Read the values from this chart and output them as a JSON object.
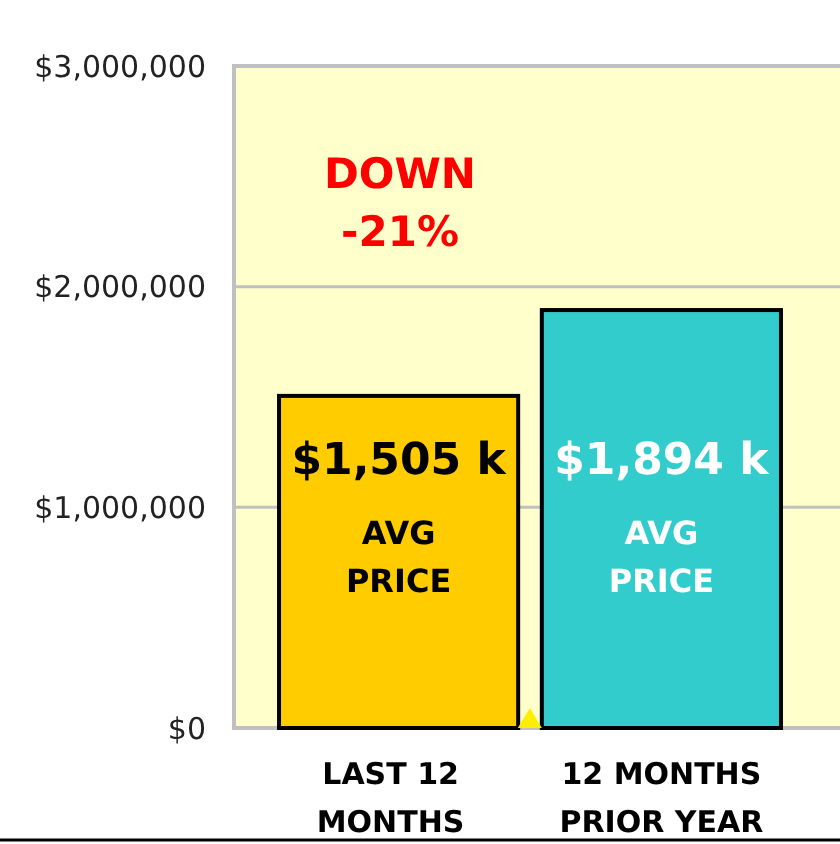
{
  "chart_data": {
    "type": "bar",
    "categories": [
      "LAST 12\nMONTHS",
      "12 MONTHS\nPRIOR YEAR"
    ],
    "values": [
      1505000,
      1894000
    ],
    "colors": [
      "#ffcc00",
      "#33cccc"
    ],
    "value_labels": [
      "$1,505 k",
      "$1,894 k"
    ],
    "ylim": [
      0,
      3000000
    ],
    "yticks": [
      {
        "value": 0,
        "label": "$0"
      },
      {
        "value": 1000000,
        "label": "$1,000,000"
      },
      {
        "value": 2000000,
        "label": "$2,000,000"
      },
      {
        "value": 3000000,
        "label": "$3,000,000"
      }
    ],
    "grid": "y",
    "annotations": [
      "DOWN\n-21%",
      "AVG\nPRICE",
      "AVG\nPRICE"
    ]
  }
}
